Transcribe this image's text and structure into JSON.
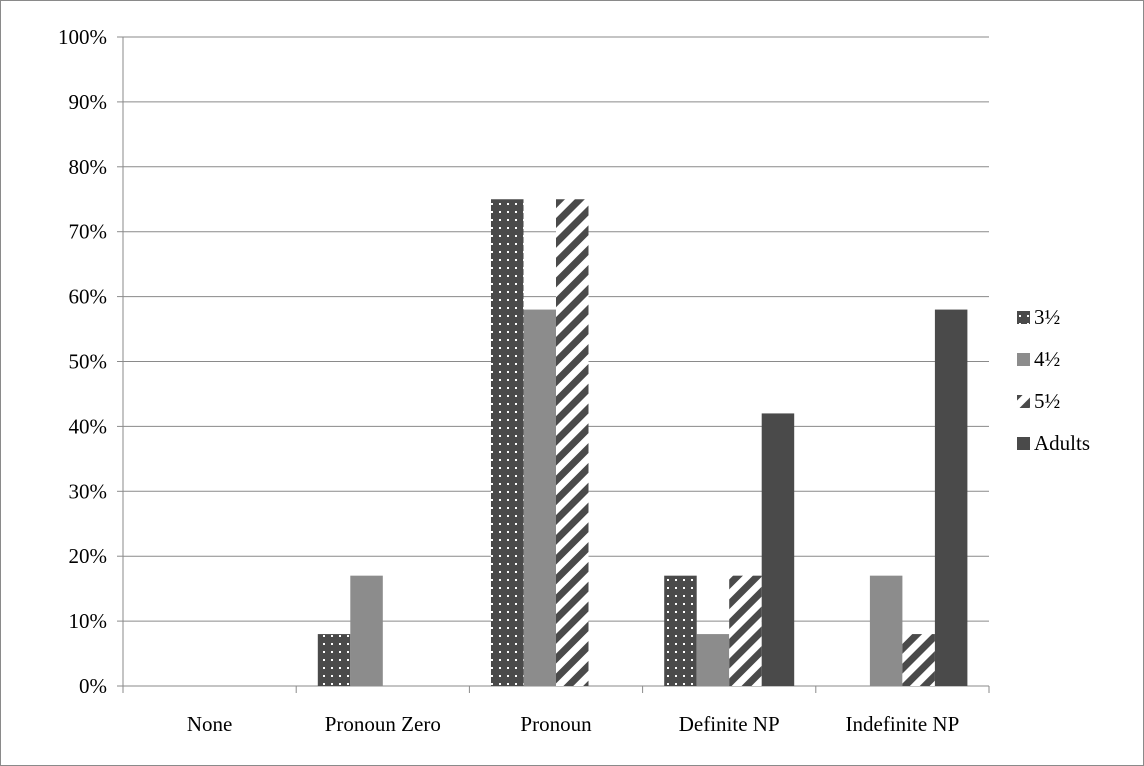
{
  "chart_data": {
    "type": "bar",
    "title": "",
    "xlabel": "",
    "ylabel": "",
    "categories": [
      "None",
      "Pronoun Zero",
      "Pronoun",
      "Definite NP",
      "Indefinite NP"
    ],
    "ylim": [
      0,
      100
    ],
    "y_ticks": [
      "0%",
      "10%",
      "20%",
      "30%",
      "40%",
      "50%",
      "60%",
      "70%",
      "80%",
      "90%",
      "100%"
    ],
    "grid": true,
    "legend_position": "right",
    "series": [
      {
        "name": "3½",
        "values": [
          0,
          8,
          75,
          17,
          0
        ],
        "color": "#4a4a4a",
        "pattern": "dots"
      },
      {
        "name": "4½",
        "values": [
          0,
          17,
          58,
          8,
          17
        ],
        "color": "#8c8c8c",
        "pattern": "solid"
      },
      {
        "name": "5½",
        "values": [
          0,
          0,
          75,
          17,
          8
        ],
        "color": "#4a4a4a",
        "pattern": "diagonal-stripes"
      },
      {
        "name": "Adults",
        "values": [
          0,
          0,
          0,
          42,
          58
        ],
        "color": "#4a4a4a",
        "pattern": "solid"
      }
    ]
  }
}
